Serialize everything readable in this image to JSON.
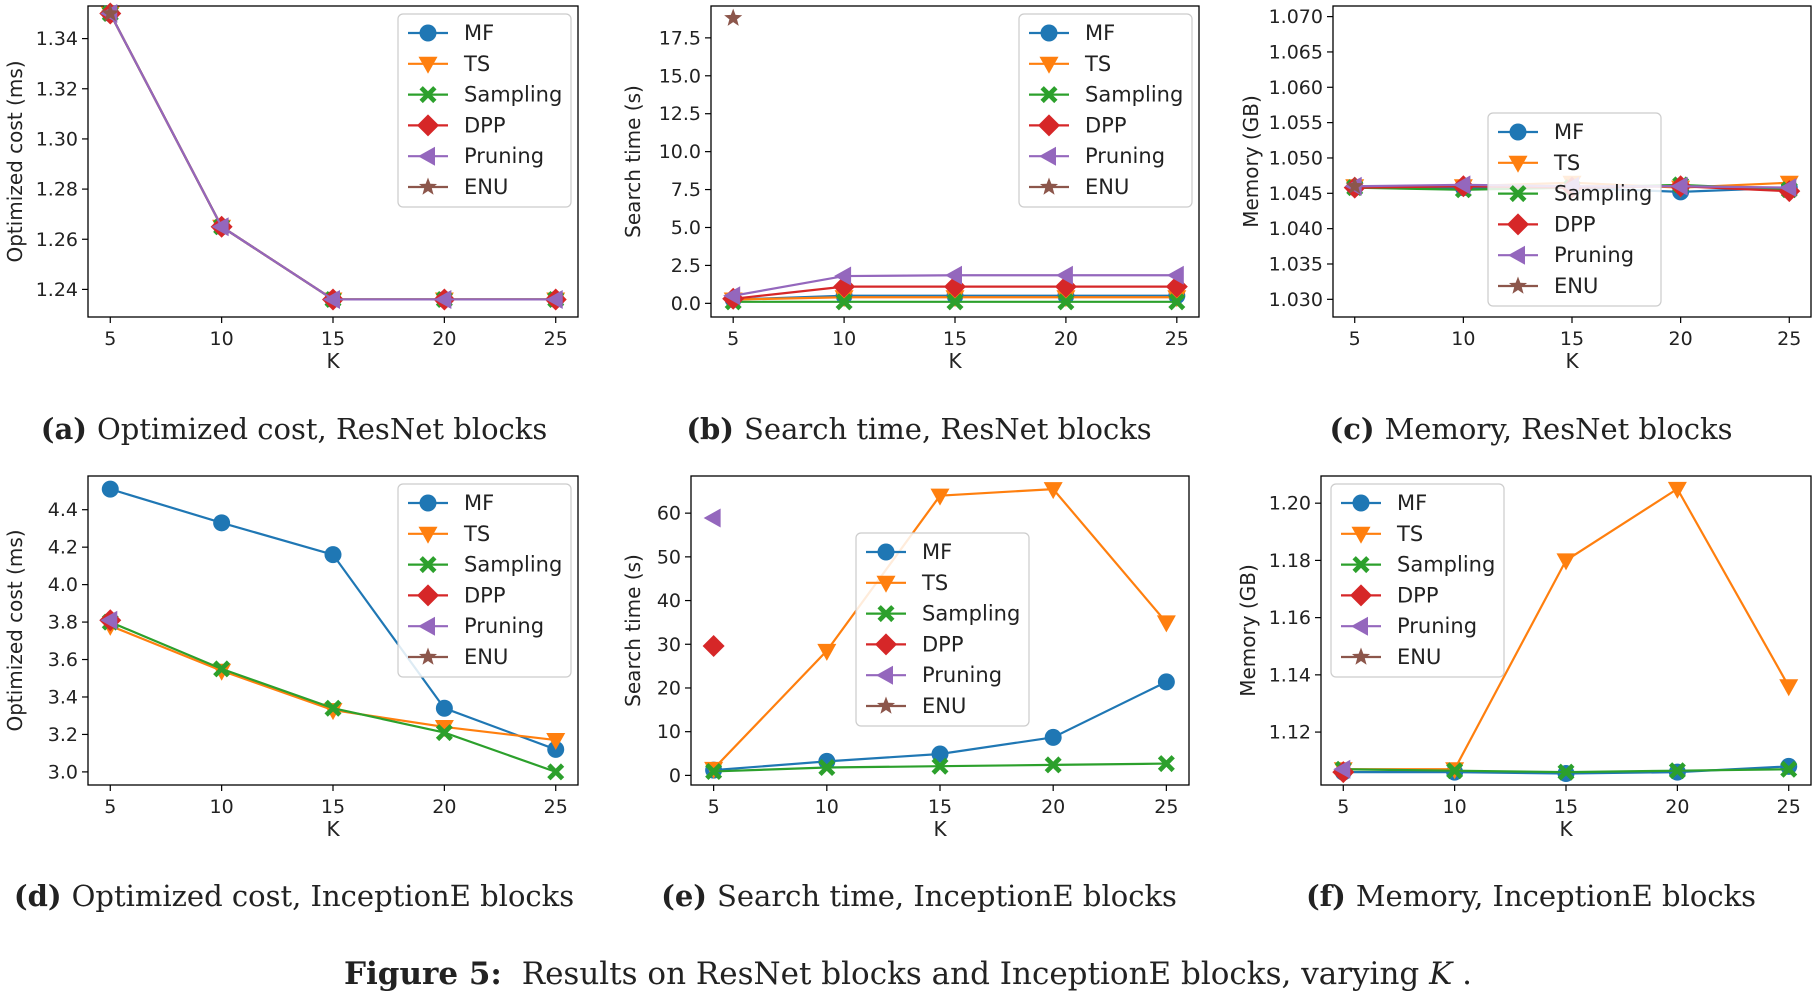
{
  "figure_caption": {
    "label": "Figure 5:",
    "text": "Results on ResNet blocks and InceptionE blocks, varying ",
    "var": "K",
    "end": "."
  },
  "colors": {
    "MF": "#1f77b4",
    "TS": "#ff7f0e",
    "Sampling": "#2ca02c",
    "DPP": "#d62728",
    "Pruning": "#9467bd",
    "ENU": "#8c564b"
  },
  "markers": {
    "MF": "circle",
    "TS": "triangle-down",
    "Sampling": "x-filled",
    "DPP": "diamond",
    "Pruning": "triangle-left",
    "ENU": "star"
  },
  "chart_data": [
    {
      "id": "a",
      "type": "line",
      "caption_tag": "(a)",
      "caption": "Optimized cost, ResNet blocks",
      "xlabel": "K",
      "ylabel": "Optimized cost (ms)",
      "x": [
        5,
        10,
        15,
        20,
        25
      ],
      "xticks": [
        "5",
        "10",
        "15",
        "20",
        "25"
      ],
      "xlim": [
        4,
        26
      ],
      "ylim": [
        1.229,
        1.353
      ],
      "yticks": [
        "1.24",
        "1.26",
        "1.28",
        "1.30",
        "1.32",
        "1.34"
      ],
      "ytick_values": [
        1.24,
        1.26,
        1.28,
        1.3,
        1.32,
        1.34
      ],
      "legend_position": "upper-right",
      "series": [
        {
          "name": "MF",
          "values": [
            1.35,
            1.265,
            1.236,
            1.236,
            1.236
          ]
        },
        {
          "name": "TS",
          "values": [
            1.35,
            1.265,
            1.236,
            1.236,
            1.236
          ]
        },
        {
          "name": "Sampling",
          "values": [
            1.35,
            1.265,
            1.236,
            1.236,
            1.236
          ]
        },
        {
          "name": "DPP",
          "values": [
            1.35,
            1.265,
            1.236,
            1.236,
            1.236
          ]
        },
        {
          "name": "Pruning",
          "values": [
            1.35,
            1.265,
            1.236,
            1.236,
            1.236
          ]
        },
        {
          "name": "ENU",
          "values": [
            1.35,
            null,
            null,
            null,
            null
          ]
        }
      ]
    },
    {
      "id": "b",
      "type": "line",
      "caption_tag": "(b)",
      "caption": "Search time, ResNet blocks",
      "xlabel": "K",
      "ylabel": "Search time (s)",
      "x": [
        5,
        10,
        15,
        20,
        25
      ],
      "xticks": [
        "5",
        "10",
        "15",
        "20",
        "25"
      ],
      "xlim": [
        4,
        26
      ],
      "ylim": [
        -0.9,
        19.6
      ],
      "yticks": [
        "0.0",
        "2.5",
        "5.0",
        "7.5",
        "10.0",
        "12.5",
        "15.0",
        "17.5"
      ],
      "ytick_values": [
        0,
        2.5,
        5,
        7.5,
        10,
        12.5,
        15,
        17.5
      ],
      "legend_position": "upper-right",
      "series": [
        {
          "name": "MF",
          "values": [
            0.25,
            0.5,
            0.5,
            0.5,
            0.5
          ]
        },
        {
          "name": "TS",
          "values": [
            0.25,
            0.4,
            0.4,
            0.4,
            0.4
          ]
        },
        {
          "name": "Sampling",
          "values": [
            0.1,
            0.1,
            0.1,
            0.1,
            0.1
          ]
        },
        {
          "name": "DPP",
          "values": [
            0.3,
            1.1,
            1.1,
            1.1,
            1.1
          ]
        },
        {
          "name": "Pruning",
          "values": [
            0.5,
            1.8,
            1.85,
            1.85,
            1.85
          ]
        },
        {
          "name": "ENU",
          "values": [
            18.8,
            null,
            null,
            null,
            null
          ]
        }
      ]
    },
    {
      "id": "c",
      "type": "line",
      "caption_tag": "(c)",
      "caption": "Memory, ResNet blocks",
      "xlabel": "K",
      "ylabel": "Memory (GB)",
      "x": [
        5,
        10,
        15,
        20,
        25
      ],
      "xticks": [
        "5",
        "10",
        "15",
        "20",
        "25"
      ],
      "xlim": [
        4,
        26
      ],
      "ylim": [
        1.0275,
        1.0715
      ],
      "yticks": [
        "1.030",
        "1.035",
        "1.040",
        "1.045",
        "1.050",
        "1.055",
        "1.060",
        "1.065",
        "1.070"
      ],
      "ytick_values": [
        1.03,
        1.035,
        1.04,
        1.045,
        1.05,
        1.055,
        1.06,
        1.065,
        1.07
      ],
      "legend_position": "center",
      "series": [
        {
          "name": "MF",
          "values": [
            1.0458,
            1.0458,
            1.0458,
            1.0452,
            1.0458
          ]
        },
        {
          "name": "TS",
          "values": [
            1.046,
            1.046,
            1.0465,
            1.0458,
            1.0465
          ]
        },
        {
          "name": "Sampling",
          "values": [
            1.0458,
            1.0455,
            1.0458,
            1.0462,
            1.0455
          ]
        },
        {
          "name": "DPP",
          "values": [
            1.0458,
            1.046,
            1.0458,
            1.046,
            1.0453
          ]
        },
        {
          "name": "Pruning",
          "values": [
            1.046,
            1.0462,
            1.046,
            1.046,
            1.0458
          ]
        },
        {
          "name": "ENU",
          "values": [
            1.046,
            null,
            null,
            null,
            null
          ]
        }
      ]
    },
    {
      "id": "d",
      "type": "line",
      "caption_tag": "(d)",
      "caption": "Optimized cost, InceptionE blocks",
      "xlabel": "K",
      "ylabel": "Optimized cost (ms)",
      "x": [
        5,
        10,
        15,
        20,
        25
      ],
      "xticks": [
        "5",
        "10",
        "15",
        "20",
        "25"
      ],
      "xlim": [
        4,
        26
      ],
      "ylim": [
        2.93,
        4.58
      ],
      "yticks": [
        "3.0",
        "3.2",
        "3.4",
        "3.6",
        "3.8",
        "4.0",
        "4.2",
        "4.4"
      ],
      "ytick_values": [
        3.0,
        3.2,
        3.4,
        3.6,
        3.8,
        4.0,
        4.2,
        4.4
      ],
      "legend_position": "upper-right",
      "series": [
        {
          "name": "MF",
          "values": [
            4.51,
            4.33,
            4.16,
            3.34,
            3.12
          ]
        },
        {
          "name": "TS",
          "values": [
            3.78,
            3.54,
            3.33,
            3.24,
            3.17
          ]
        },
        {
          "name": "Sampling",
          "values": [
            3.8,
            3.55,
            3.34,
            3.21,
            3.0
          ]
        },
        {
          "name": "DPP",
          "values": [
            3.81,
            null,
            null,
            null,
            null
          ]
        },
        {
          "name": "Pruning",
          "values": [
            3.81,
            null,
            null,
            null,
            null
          ]
        },
        {
          "name": "ENU",
          "values": [
            null,
            null,
            null,
            null,
            null
          ]
        }
      ]
    },
    {
      "id": "e",
      "type": "line",
      "caption_tag": "(e)",
      "caption": "Search time, InceptionE blocks",
      "xlabel": "K",
      "ylabel": "Search time (s)",
      "x": [
        5,
        10,
        15,
        20,
        25
      ],
      "xticks": [
        "5",
        "10",
        "15",
        "20",
        "25"
      ],
      "xlim": [
        4,
        26
      ],
      "ylim": [
        -2.2,
        68.5
      ],
      "yticks": [
        "0",
        "10",
        "20",
        "30",
        "40",
        "50",
        "60"
      ],
      "ytick_values": [
        0,
        10,
        20,
        30,
        40,
        50,
        60
      ],
      "legend_position": "center",
      "series": [
        {
          "name": "MF",
          "values": [
            1.2,
            3.2,
            4.9,
            8.7,
            21.4
          ]
        },
        {
          "name": "TS",
          "values": [
            1.5,
            28.5,
            64.0,
            65.5,
            35.0
          ]
        },
        {
          "name": "Sampling",
          "values": [
            0.9,
            1.8,
            2.1,
            2.4,
            2.7
          ]
        },
        {
          "name": "DPP",
          "values": [
            29.6,
            null,
            null,
            null,
            null
          ]
        },
        {
          "name": "Pruning",
          "values": [
            58.9,
            null,
            null,
            null,
            null
          ]
        },
        {
          "name": "ENU",
          "values": [
            null,
            null,
            null,
            null,
            null
          ]
        }
      ]
    },
    {
      "id": "f",
      "type": "line",
      "caption_tag": "(f)",
      "caption": "Memory, InceptionE blocks",
      "xlabel": "K",
      "ylabel": "Memory (GB)",
      "x": [
        5,
        10,
        15,
        20,
        25
      ],
      "xticks": [
        "5",
        "10",
        "15",
        "20",
        "25"
      ],
      "xlim": [
        4,
        26
      ],
      "ylim": [
        1.1015,
        1.2095
      ],
      "yticks": [
        "1.12",
        "1.14",
        "1.16",
        "1.18",
        "1.20"
      ],
      "ytick_values": [
        1.12,
        1.14,
        1.16,
        1.18,
        1.2
      ],
      "legend_position": "upper-left",
      "series": [
        {
          "name": "MF",
          "values": [
            1.106,
            1.106,
            1.1055,
            1.106,
            1.108
          ]
        },
        {
          "name": "TS",
          "values": [
            1.107,
            1.107,
            1.18,
            1.205,
            1.136
          ]
        },
        {
          "name": "Sampling",
          "values": [
            1.107,
            1.1065,
            1.106,
            1.1065,
            1.107
          ]
        },
        {
          "name": "DPP",
          "values": [
            1.106,
            null,
            null,
            null,
            null
          ]
        },
        {
          "name": "Pruning",
          "values": [
            1.107,
            null,
            null,
            null,
            null
          ]
        },
        {
          "name": "ENU",
          "values": [
            null,
            null,
            null,
            null,
            null
          ]
        }
      ]
    }
  ]
}
